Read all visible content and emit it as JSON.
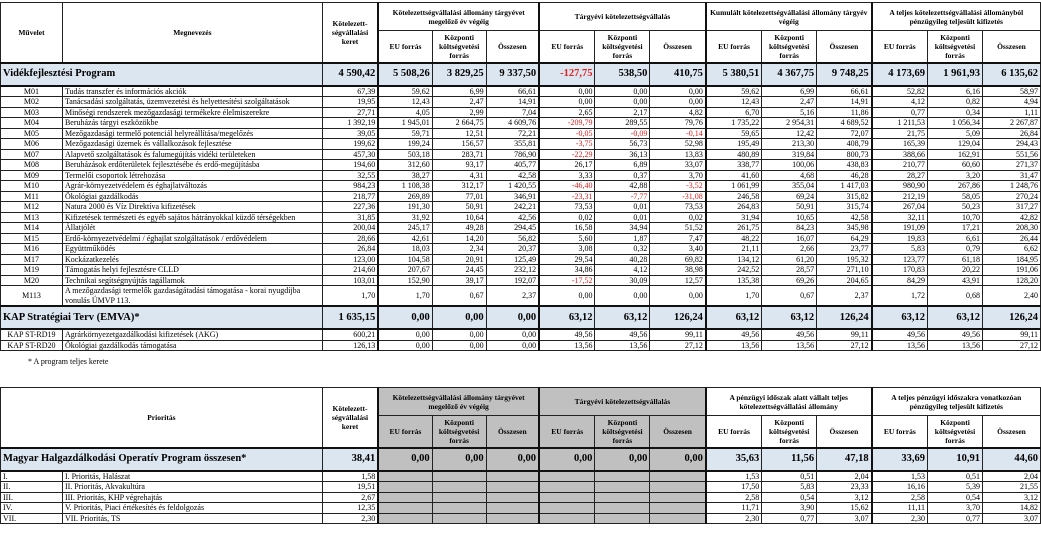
{
  "headers": {
    "muvelet": "Művelet",
    "megnevezes": "Megnevezés",
    "keret": "Kötelezett-ségvállalási keret",
    "prioritas": "Prioritás",
    "g1": "Kötelezettségvállalási állomány tárgyévet megelőző év végéig",
    "g2": "Tárgyévi kötelezettségvállalás",
    "g3": "Kumulált kötelezettségvállalási állomány tárgyév végéig",
    "g4": "A teljes kötelezettségvállalási állományból pénzügyileg teljesült kifizetés",
    "g3b": "A pénzügyi időszak alatt vállalt teljes kötelezettségvállalási állomány",
    "g4b": "A teljes pénzügyi időszakra vonatkozóan pénzügyileg teljesült kifizetés",
    "eu": "EU forrás",
    "kk": "Központi költségvetési forrás",
    "ossz": "Összesen"
  },
  "vp": {
    "total": [
      "Vidékfejlesztési Program",
      "4 590,42",
      "5 508,26",
      "3 829,25",
      "9 337,50",
      "-127,75",
      "538,50",
      "410,75",
      "5 380,51",
      "4 367,75",
      "9 748,25",
      "4 173,69",
      "1 961,93",
      "6 135,62"
    ],
    "rows": [
      [
        "M01",
        "Tudás transzfer és információs akciók",
        "67,39",
        "59,62",
        "6,99",
        "66,61",
        "0,00",
        "0,00",
        "0,00",
        "59,62",
        "6,99",
        "66,61",
        "52,82",
        "6,16",
        "58,97"
      ],
      [
        "M02",
        "Tanácsadási szolgáltatás, üzemvezetési és helyettesítési szolgáltatások",
        "19,95",
        "12,43",
        "2,47",
        "14,91",
        "0,00",
        "0,00",
        "0,00",
        "12,43",
        "2,47",
        "14,91",
        "4,12",
        "0,82",
        "4,94"
      ],
      [
        "M03",
        "Minőségi rendszerek mezőgazdasági  termékekre élelmiszerekre",
        "27,71",
        "4,05",
        "2,99",
        "7,04",
        "2,65",
        "2,17",
        "4,82",
        "6,70",
        "5,16",
        "11,86",
        "0,77",
        "0,34",
        "1,11"
      ],
      [
        "M04",
        "Beruházás tárgyi eszközökbe",
        "1 392,19",
        "1 945,01",
        "2 664,75",
        "4 609,76",
        "-209,79",
        "289,55",
        "79,76",
        "1 735,22",
        "2 954,31",
        "4 689,52",
        "1 211,53",
        "1 056,34",
        "2 267,87"
      ],
      [
        "M05",
        "Mezőgazdasági termelő potenciál helyreállítása/megelőzés",
        "39,05",
        "59,71",
        "12,51",
        "72,21",
        "-0,05",
        "-0,09",
        "-0,14",
        "59,65",
        "12,42",
        "72,07",
        "21,75",
        "5,09",
        "26,84"
      ],
      [
        "M06",
        "Mezőgazdasági üzemek és vállalkozások fejlesztése",
        "199,62",
        "199,24",
        "156,57",
        "355,81",
        "-3,75",
        "56,73",
        "52,98",
        "195,49",
        "213,30",
        "408,79",
        "165,39",
        "129,04",
        "294,43"
      ],
      [
        "M07",
        "Alapvető szolgáltatások és falumegújítás vidéki területeken",
        "457,30",
        "503,18",
        "283,71",
        "786,90",
        "-22,29",
        "36,13",
        "13,83",
        "480,89",
        "319,84",
        "800,73",
        "388,66",
        "162,91",
        "551,56"
      ],
      [
        "M08",
        "Beruházások erdőterületek fejlesztésébe és erdő-megújításba",
        "194,60",
        "312,60",
        "93,17",
        "405,77",
        "26,17",
        "6,89",
        "33,07",
        "338,77",
        "100,06",
        "438,83",
        "210,77",
        "60,60",
        "271,37"
      ],
      [
        "M09",
        "Termelői csoportok létrehozása",
        "32,55",
        "38,27",
        "4,31",
        "42,58",
        "3,33",
        "0,37",
        "3,70",
        "41,60",
        "4,68",
        "46,28",
        "28,27",
        "3,20",
        "31,47"
      ],
      [
        "M10",
        "Agrár-környezetvédelem és éghajlatváltozás",
        "984,23",
        "1 108,38",
        "312,17",
        "1 420,55",
        "-46,40",
        "42,88",
        "-3,52",
        "1 061,99",
        "355,04",
        "1 417,03",
        "980,90",
        "267,86",
        "1 248,76"
      ],
      [
        "M11",
        "Ökológiai gazdálkodás",
        "218,77",
        "269,89",
        "77,01",
        "346,91",
        "-23,31",
        "-7,77",
        "-31,08",
        "246,58",
        "69,24",
        "315,82",
        "212,19",
        "58,05",
        "270,24"
      ],
      [
        "M12",
        "Natura 2000 és Víz Direktíva kifizetések",
        "227,36",
        "191,30",
        "50,91",
        "242,21",
        "73,53",
        "0,01",
        "73,53",
        "264,83",
        "50,91",
        "315,74",
        "267,04",
        "50,23",
        "317,27"
      ],
      [
        "M13",
        "Kifizetések természeti és egyéb sajátos hátrányokkal küzdő térségekben",
        "31,85",
        "31,92",
        "10,64",
        "42,56",
        "0,02",
        "0,01",
        "0,02",
        "31,94",
        "10,65",
        "42,58",
        "32,11",
        "10,70",
        "42,82"
      ],
      [
        "M14",
        "Állatjólét",
        "200,04",
        "245,17",
        "49,28",
        "294,45",
        "16,58",
        "34,94",
        "51,52",
        "261,75",
        "84,23",
        "345,98",
        "191,09",
        "17,21",
        "208,30"
      ],
      [
        "M15",
        "Erdő-környezetvédelmi / éghajlat szolgáltatások / erdővédelem",
        "28,66",
        "42,61",
        "14,20",
        "56,82",
        "5,60",
        "1,87",
        "7,47",
        "48,22",
        "16,07",
        "64,29",
        "19,83",
        "6,61",
        "26,44"
      ],
      [
        "M16",
        "Együttműködés",
        "26,84",
        "18,03",
        "2,34",
        "20,37",
        "3,08",
        "0,32",
        "3,40",
        "21,11",
        "2,66",
        "23,77",
        "5,83",
        "0,79",
        "6,62"
      ],
      [
        "M17",
        "Kockázatkezelés",
        "123,00",
        "104,58",
        "20,91",
        "125,49",
        "29,54",
        "40,28",
        "69,82",
        "134,12",
        "61,20",
        "195,32",
        "123,77",
        "61,18",
        "184,95"
      ],
      [
        "M19",
        "Támogatás helyi fejlesztésre CLLD",
        "214,60",
        "207,67",
        "24,45",
        "232,12",
        "34,86",
        "4,12",
        "38,98",
        "242,52",
        "28,57",
        "271,10",
        "170,83",
        "20,22",
        "191,06"
      ],
      [
        "M20",
        "Technikai segítségnyújtás tagállamok",
        "103,01",
        "152,90",
        "39,17",
        "192,07",
        "-17,52",
        "30,09",
        "12,57",
        "135,38",
        "69,26",
        "204,65",
        "84,29",
        "43,91",
        "128,20"
      ],
      [
        "M113",
        "A mezőgazdasági termelők gazdaságátadási támogatása - korai nyugdíjba vonulás ÚMVP 113.",
        "1,70",
        "1,70",
        "0,67",
        "2,37",
        "0,00",
        "0,00",
        "0,00",
        "1,70",
        "0,67",
        "2,37",
        "1,72",
        "0,68",
        "2,40"
      ]
    ]
  },
  "kap": {
    "total": [
      "KAP Stratégiai Terv (EMVA)*",
      "1 635,15",
      "0,00",
      "0,00",
      "0,00",
      "63,12",
      "63,12",
      "126,24",
      "63,12",
      "63,12",
      "126,24",
      "63,12",
      "63,12",
      "126,24"
    ],
    "rows": [
      [
        "KAP ST-RD19",
        "Agrárkörnyezetgazdálkodási kifizetések (AKG)",
        "600,21",
        "0,00",
        "0,00",
        "0,00",
        "49,56",
        "49,56",
        "99,11",
        "49,56",
        "49,56",
        "99,11",
        "49,56",
        "49,56",
        "99,11"
      ],
      [
        "KAP ST-RD20",
        "Ökológiai gazdálkodás támogatása",
        "126,13",
        "0,00",
        "0,00",
        "0,00",
        "13,56",
        "13,56",
        "27,12",
        "13,56",
        "13,56",
        "27,12",
        "13,56",
        "13,56",
        "27,12"
      ]
    ]
  },
  "footnote": "*  A program teljes kerete",
  "mahop": {
    "total": [
      "Magyar Halgazdálkodási Operatív Program összesen*",
      "38,41",
      "0,00",
      "0,00",
      "0,00",
      "0,00",
      "0,00",
      "0,00",
      "35,63",
      "11,56",
      "47,18",
      "33,69",
      "10,91",
      "44,60"
    ],
    "rows": [
      [
        "I.",
        "I. Prioritás, Halászat",
        "1,58",
        "",
        "",
        "",
        "",
        "",
        "",
        "1,53",
        "0,51",
        "2,04",
        "1,53",
        "0,51",
        "2,04"
      ],
      [
        "II.",
        "II. Prioritás, Akvakultúra",
        "19,51",
        "",
        "",
        "",
        "",
        "",
        "",
        "17,50",
        "5,83",
        "23,33",
        "16,16",
        "5,39",
        "21,55"
      ],
      [
        "III.",
        "III. Prioritás, KHP végrehajtás",
        "2,67",
        "",
        "",
        "",
        "",
        "",
        "",
        "2,58",
        "0,54",
        "3,12",
        "2,58",
        "0,54",
        "3,12"
      ],
      [
        "IV.",
        "V. Prioritás, Piaci értékesítés és feldolgozás",
        "12,35",
        "",
        "",
        "",
        "",
        "",
        "",
        "11,71",
        "3,90",
        "15,62",
        "11,11",
        "3,70",
        "14,82"
      ],
      [
        "VII.",
        "VII. Prioritás, TS",
        "2,30",
        "",
        "",
        "",
        "",
        "",
        "",
        "2,30",
        "0,77",
        "3,07",
        "2,30",
        "0,77",
        "3,07"
      ]
    ]
  }
}
